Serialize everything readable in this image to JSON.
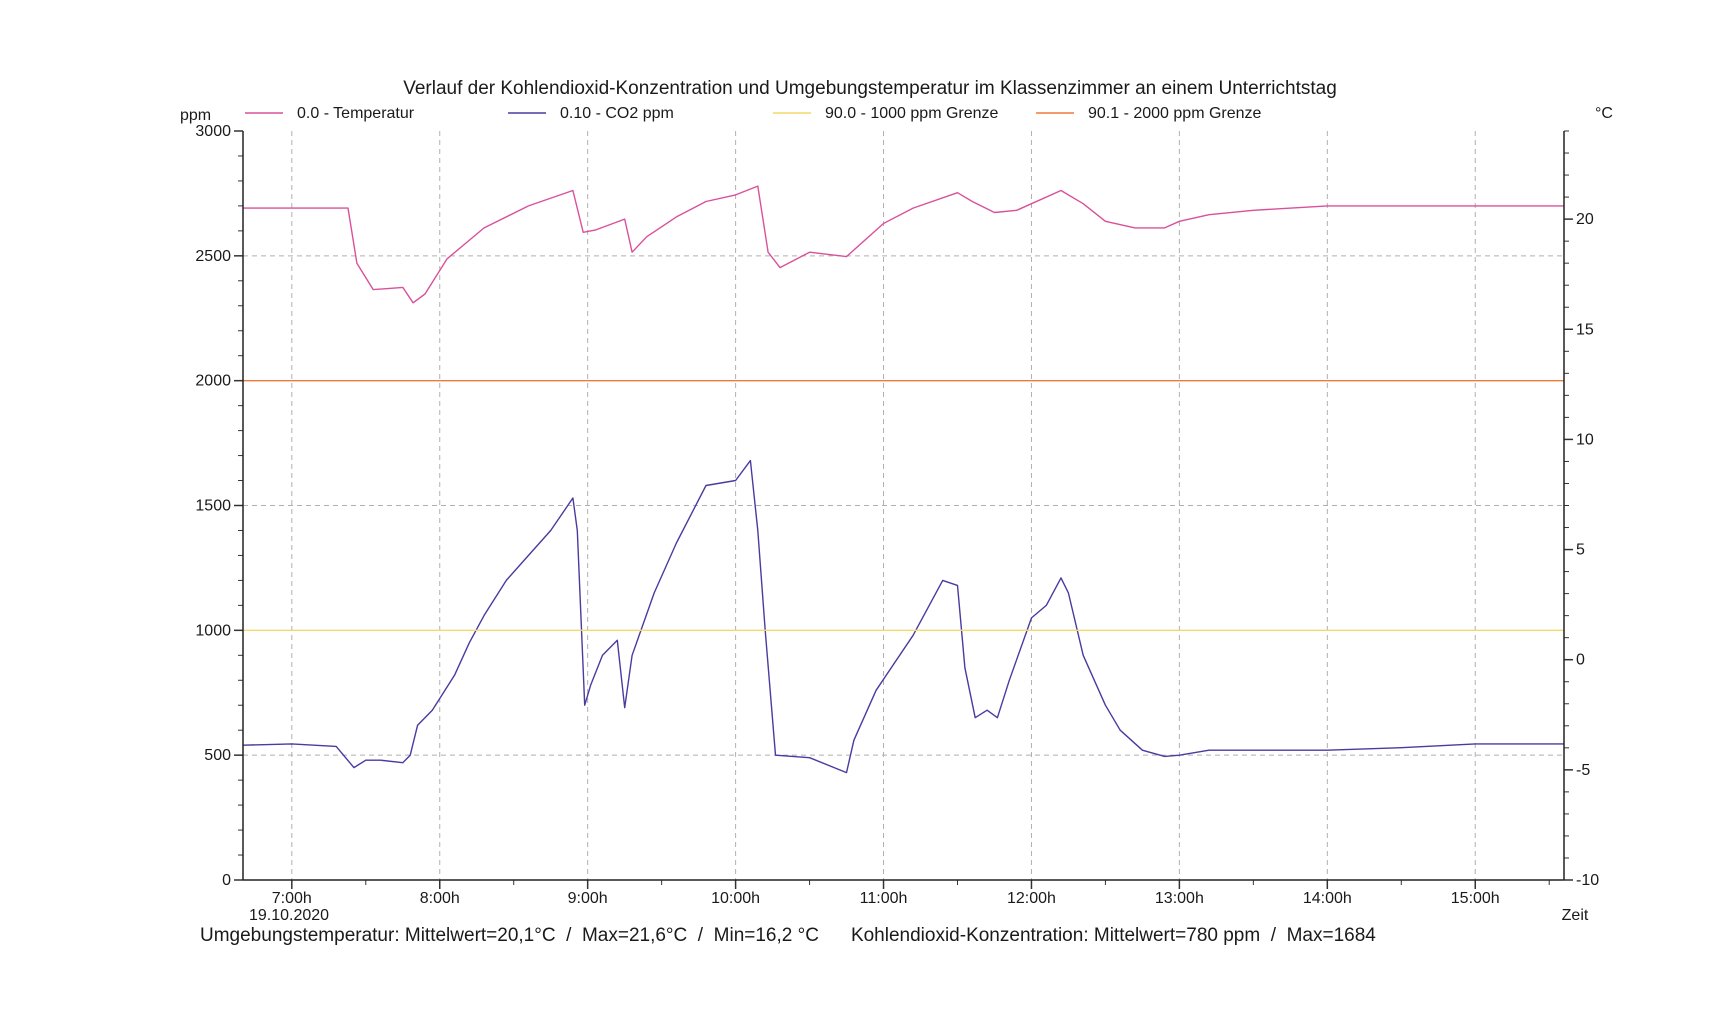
{
  "chart_data": {
    "type": "line",
    "title": "Verlauf der Kohlendioxid-Konzentration und Umgebungstemperatur im Klassenzimmer an einem Unterrichtstag",
    "y_left_label": "ppm",
    "y_right_label": "°C",
    "x_label": "Zeit",
    "x_date_label": "19.10.2020",
    "x_range_hours": [
      6.67,
      15.6
    ],
    "y_left_range": [
      0,
      3000
    ],
    "y_right_range": [
      -10,
      24
    ],
    "x_ticks": [
      {
        "h": 7,
        "label": "7:00h"
      },
      {
        "h": 8,
        "label": "8:00h"
      },
      {
        "h": 9,
        "label": "9:00h"
      },
      {
        "h": 10,
        "label": "10:00h"
      },
      {
        "h": 11,
        "label": "11:00h"
      },
      {
        "h": 12,
        "label": "12:00h"
      },
      {
        "h": 13,
        "label": "13:00h"
      },
      {
        "h": 14,
        "label": "14:00h"
      },
      {
        "h": 15,
        "label": "15:00h"
      }
    ],
    "y_left_ticks": [
      {
        "v": 0,
        "label": "0"
      },
      {
        "v": 500,
        "label": "500"
      },
      {
        "v": 1000,
        "label": "1000"
      },
      {
        "v": 1500,
        "label": "1500"
      },
      {
        "v": 2000,
        "label": "2000"
      },
      {
        "v": 2500,
        "label": "2500"
      },
      {
        "v": 3000,
        "label": "3000"
      }
    ],
    "y_right_ticks": [
      {
        "v": -10,
        "label": "-10"
      },
      {
        "v": -5,
        "label": "-5"
      },
      {
        "v": 0,
        "label": "0"
      },
      {
        "v": 5,
        "label": "5"
      },
      {
        "v": 10,
        "label": "10"
      },
      {
        "v": 15,
        "label": "15"
      },
      {
        "v": 20,
        "label": "20"
      }
    ],
    "grid": true,
    "legend_position": "top",
    "series": [
      {
        "name": "0.0 - Temperatur",
        "axis": "right",
        "color": "#d9519a",
        "x": [
          6.67,
          7.0,
          7.38,
          7.44,
          7.55,
          7.75,
          7.82,
          7.9,
          8.05,
          8.3,
          8.6,
          8.9,
          8.97,
          9.05,
          9.25,
          9.3,
          9.4,
          9.6,
          9.8,
          10.0,
          10.15,
          10.22,
          10.3,
          10.5,
          10.75,
          11.0,
          11.2,
          11.5,
          11.6,
          11.75,
          11.9,
          12.0,
          12.2,
          12.35,
          12.5,
          12.7,
          12.9,
          13.0,
          13.2,
          13.5,
          14.0,
          14.5,
          15.0,
          15.6
        ],
        "y": [
          20.5,
          20.5,
          20.5,
          18.0,
          16.8,
          16.9,
          16.2,
          16.6,
          18.2,
          19.6,
          20.6,
          21.3,
          19.4,
          19.5,
          20.0,
          18.5,
          19.2,
          20.1,
          20.8,
          21.1,
          21.5,
          18.5,
          17.8,
          18.5,
          18.3,
          19.8,
          20.5,
          21.2,
          20.8,
          20.3,
          20.4,
          20.7,
          21.3,
          20.7,
          19.9,
          19.6,
          19.6,
          19.9,
          20.2,
          20.4,
          20.6,
          20.6,
          20.6,
          20.6
        ]
      },
      {
        "name": "0.10 - CO2 ppm",
        "axis": "left",
        "color": "#4b3aa0",
        "x": [
          6.67,
          7.0,
          7.3,
          7.42,
          7.5,
          7.6,
          7.75,
          7.8,
          7.85,
          7.95,
          8.1,
          8.2,
          8.3,
          8.45,
          8.6,
          8.75,
          8.9,
          8.93,
          8.98,
          9.02,
          9.1,
          9.2,
          9.25,
          9.3,
          9.45,
          9.6,
          9.8,
          10.0,
          10.1,
          10.15,
          10.2,
          10.27,
          10.5,
          10.75,
          10.8,
          10.95,
          11.2,
          11.4,
          11.5,
          11.55,
          11.62,
          11.7,
          11.77,
          11.85,
          12.0,
          12.1,
          12.2,
          12.25,
          12.35,
          12.5,
          12.6,
          12.75,
          12.9,
          13.0,
          13.2,
          13.5,
          14.0,
          14.5,
          15.0,
          15.6
        ],
        "y": [
          540,
          545,
          535,
          450,
          480,
          480,
          470,
          500,
          620,
          680,
          820,
          950,
          1060,
          1200,
          1300,
          1400,
          1530,
          1400,
          700,
          780,
          900,
          960,
          690,
          900,
          1150,
          1350,
          1580,
          1600,
          1680,
          1400,
          1000,
          500,
          490,
          430,
          560,
          760,
          980,
          1200,
          1180,
          850,
          650,
          680,
          650,
          800,
          1050,
          1100,
          1210,
          1150,
          900,
          700,
          600,
          520,
          495,
          500,
          520,
          520,
          520,
          530,
          545,
          545
        ]
      },
      {
        "name": "90.0 - 1000 ppm Grenze",
        "axis": "left",
        "color": "#f5d96a",
        "x": [
          6.67,
          15.6
        ],
        "y": [
          1000,
          1000
        ]
      },
      {
        "name": "90.1 - 2000 ppm Grenze",
        "axis": "left",
        "color": "#f07a3a",
        "x": [
          6.67,
          15.6
        ],
        "y": [
          2000,
          2000
        ]
      }
    ]
  },
  "footer": {
    "temperature_summary": "Umgebungstemperatur: Mittelwert=20,1°C  /  Max=21,6°C  /  Min=16,2 °C",
    "co2_summary": "Kohlendioxid-Konzentration: Mittelwert=780 ppm  /  Max=1684"
  }
}
